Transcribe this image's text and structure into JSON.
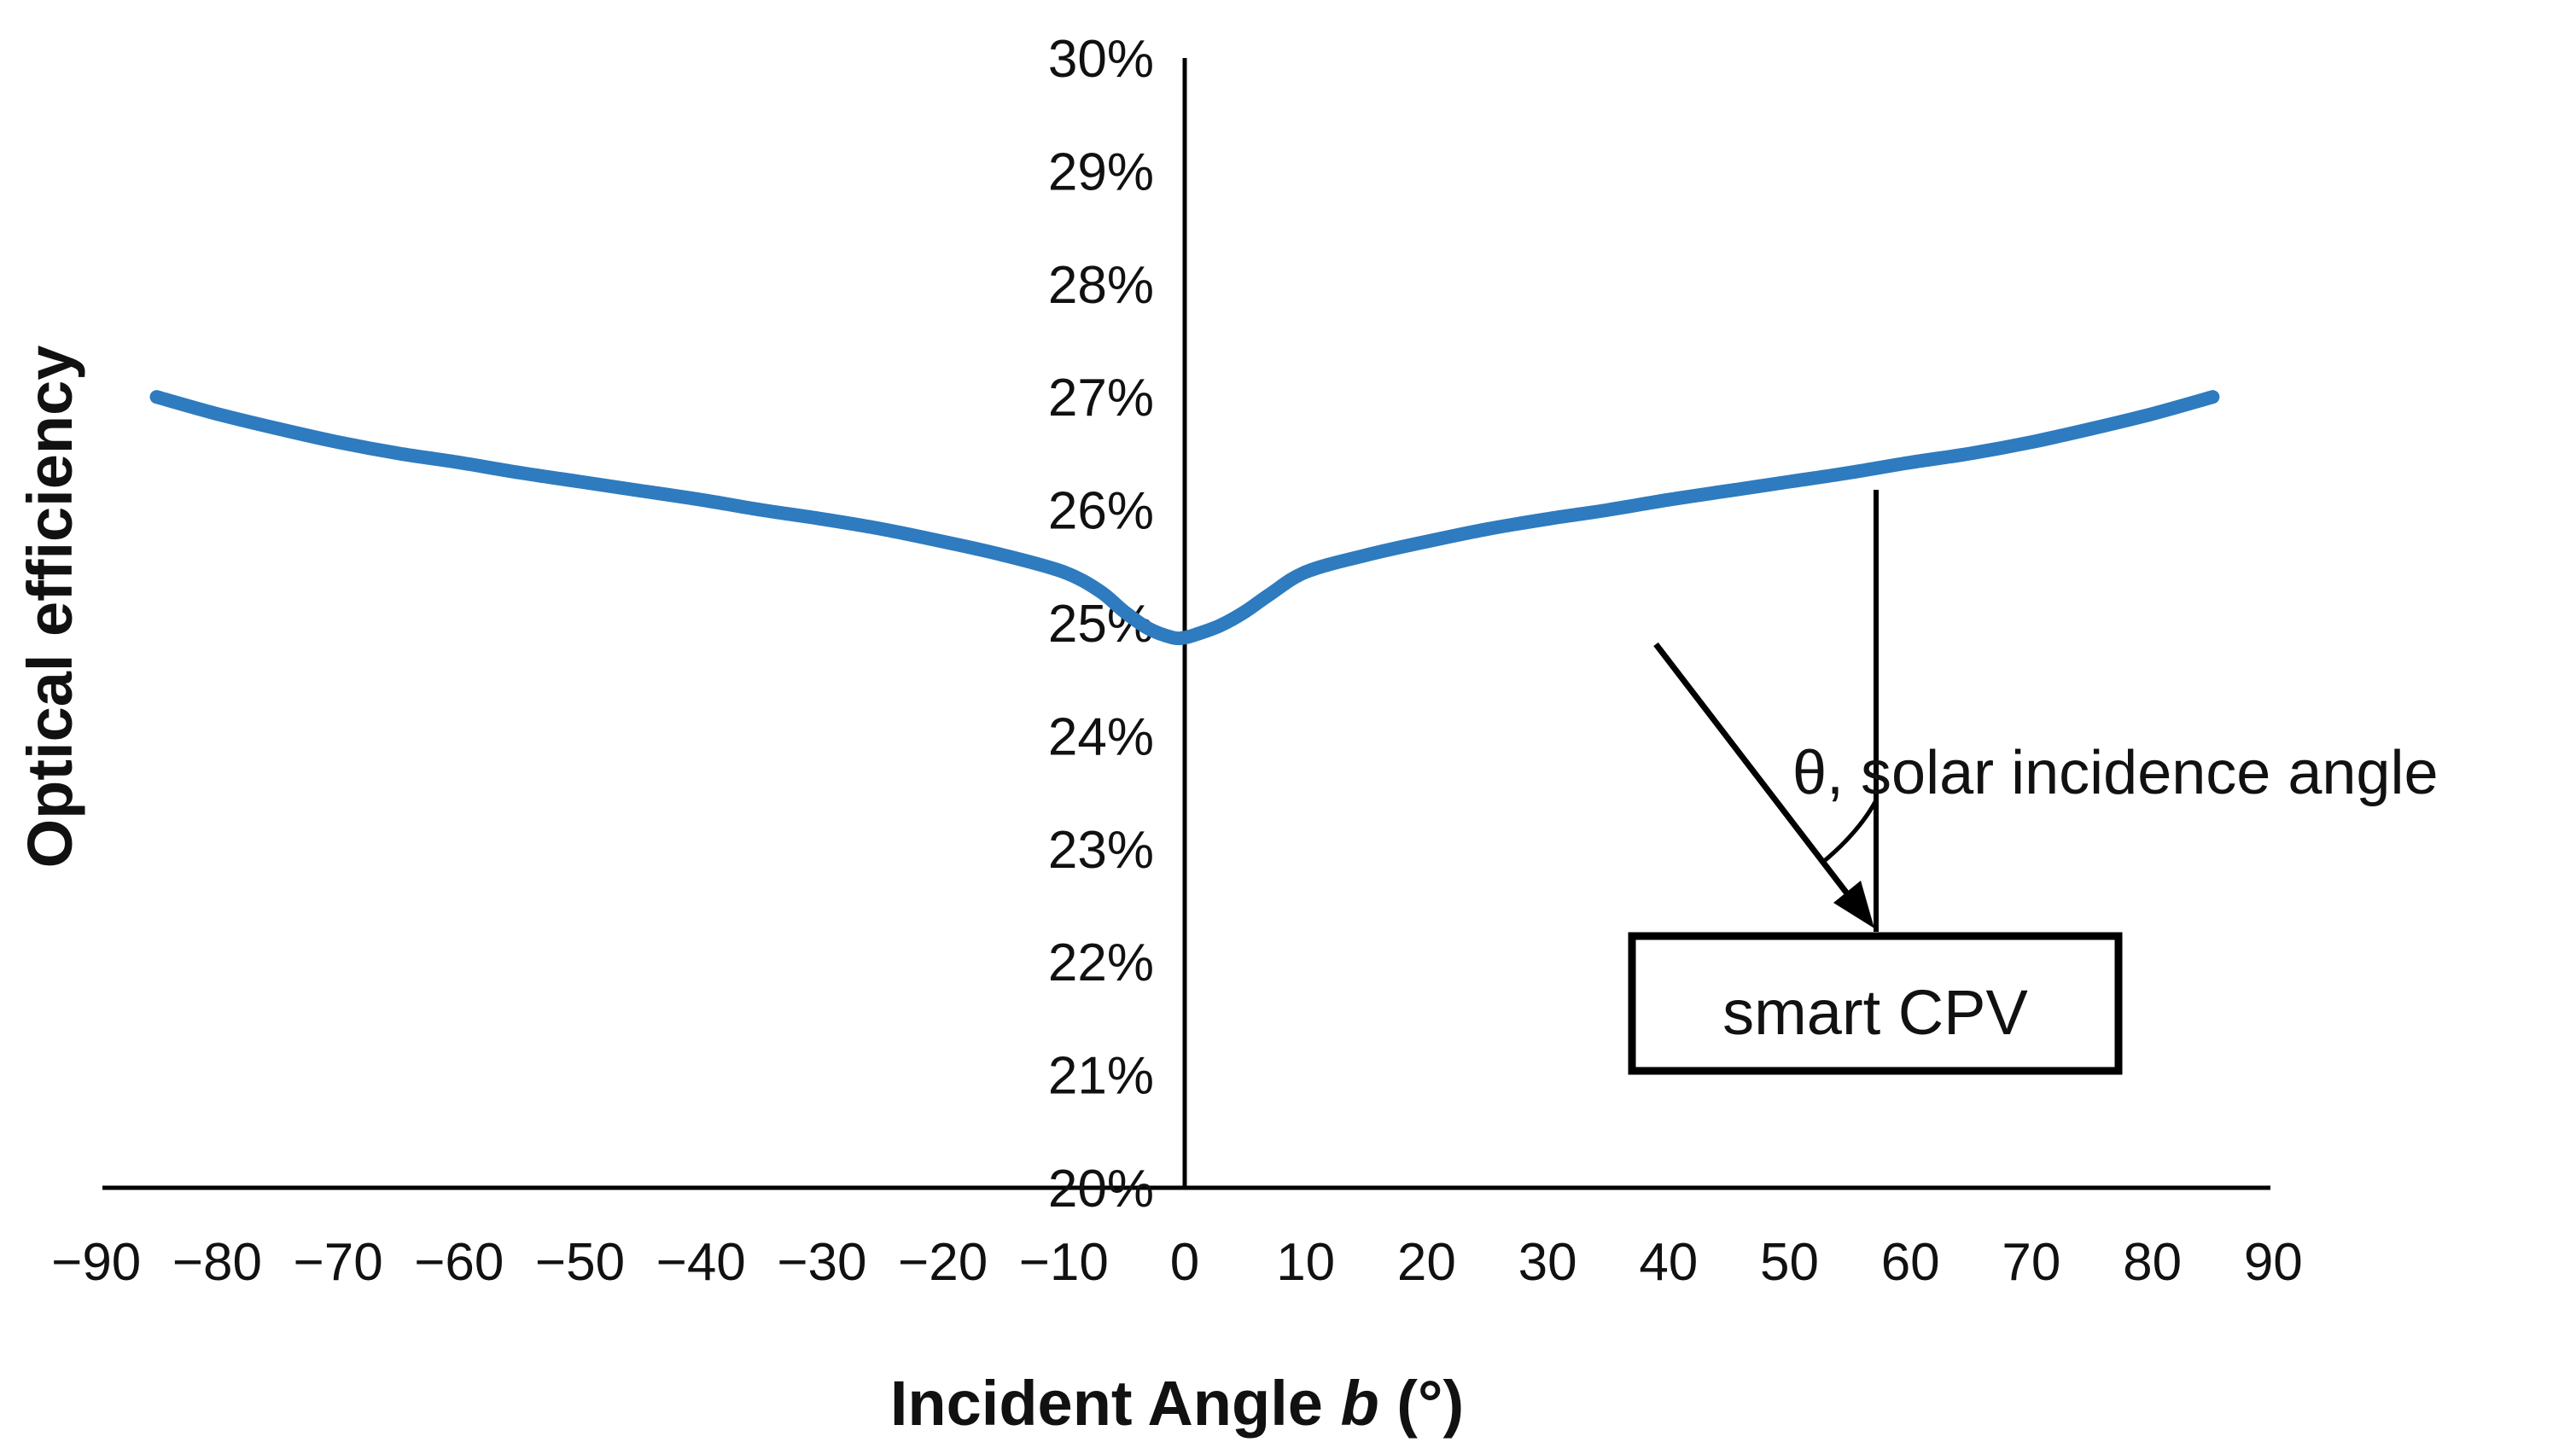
{
  "chart_data": {
    "type": "line",
    "title": "",
    "xlabel_prefix": "Incident Angle ",
    "xlabel_var": "b",
    "xlabel_suffix": " (°)",
    "ylabel": "Optical efficiency",
    "xlim": [
      -90,
      90
    ],
    "ylim": [
      20,
      30
    ],
    "x_ticks": [
      -90,
      -80,
      -70,
      -60,
      -50,
      -40,
      -30,
      -20,
      -10,
      0,
      10,
      20,
      30,
      40,
      50,
      60,
      70,
      80,
      90
    ],
    "x_tick_labels": [
      "−90",
      "−80",
      "−70",
      "−60",
      "−50",
      "−40",
      "−30",
      "−20",
      "−10",
      "0",
      "10",
      "20",
      "30",
      "40",
      "50",
      "60",
      "70",
      "80",
      "90"
    ],
    "y_ticks": [
      20,
      21,
      22,
      23,
      24,
      25,
      26,
      27,
      28,
      29,
      30
    ],
    "y_tick_labels": [
      "20%",
      "21%",
      "22%",
      "23%",
      "24%",
      "25%",
      "26%",
      "27%",
      "28%",
      "29%",
      "30%"
    ],
    "grid": false,
    "series": [
      {
        "name": "Optical efficiency",
        "color": "#2E7BBF",
        "x": [
          -85,
          -80,
          -75,
          -70,
          -65,
          -60,
          -55,
          -50,
          -45,
          -40,
          -35,
          -30,
          -25,
          -20,
          -15,
          -10,
          -7,
          -5,
          -3,
          -1,
          0,
          1,
          3,
          5,
          7,
          10,
          15,
          20,
          25,
          30,
          35,
          40,
          45,
          50,
          55,
          60,
          65,
          70,
          75,
          80,
          85
        ],
        "y": [
          27.0,
          26.85,
          26.72,
          26.6,
          26.5,
          26.42,
          26.33,
          26.25,
          26.17,
          26.09,
          26.0,
          25.92,
          25.83,
          25.72,
          25.6,
          25.45,
          25.28,
          25.1,
          24.95,
          24.87,
          24.87,
          24.9,
          24.98,
          25.1,
          25.25,
          25.45,
          25.6,
          25.72,
          25.83,
          25.92,
          26.0,
          26.09,
          26.17,
          26.25,
          26.33,
          26.42,
          26.5,
          26.6,
          26.72,
          26.85,
          27.0
        ]
      }
    ],
    "annotation": {
      "label": "θ, solar incidence angle",
      "box_label": "smart CPV"
    }
  }
}
